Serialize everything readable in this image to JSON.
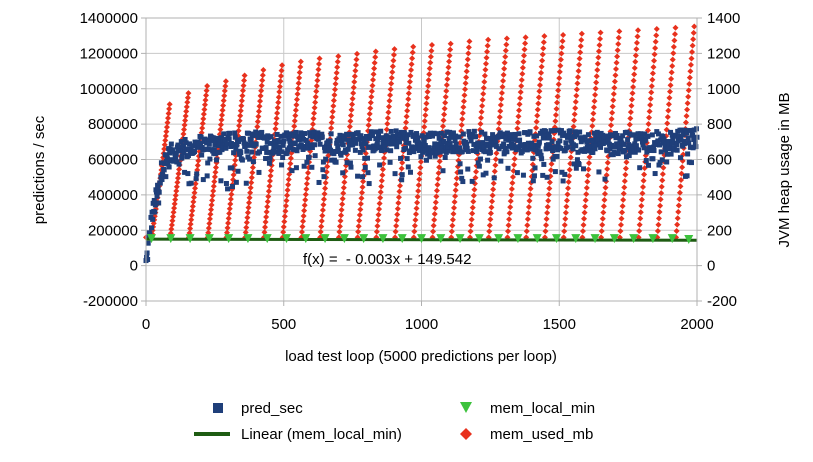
{
  "chart_data": {
    "type": "scatter",
    "title": "",
    "xlabel": "load test loop (5000 predictions per loop)",
    "ylabel": "predictions / sec",
    "y2label": "JVM heap usage in MB",
    "xlim": [
      0,
      2000
    ],
    "ylim": [
      -200000,
      1400000
    ],
    "y2lim": [
      -200,
      1400
    ],
    "x_ticks": [
      0,
      500,
      1000,
      1500,
      2000
    ],
    "y_ticks": [
      -200000,
      0,
      200000,
      400000,
      600000,
      800000,
      1000000,
      1200000,
      1400000
    ],
    "y2_ticks": [
      -200,
      0,
      200,
      400,
      600,
      800,
      1000,
      1200,
      1400
    ],
    "grid": true,
    "legend_position": "bottom",
    "trendline_label": "f(x) =  - 0.003x + 149.542",
    "series": [
      {
        "name": "pred_sec",
        "axis": "y",
        "color": "#1f3f7a",
        "marker": "square",
        "description_points": {
          "x": [
            0,
            5,
            10,
            15,
            20,
            30,
            40,
            50,
            60,
            80,
            100,
            150,
            200,
            300,
            400,
            500,
            600,
            700,
            800,
            900,
            1000,
            1100,
            1200,
            1300,
            1400,
            1500,
            1600,
            1700,
            1800,
            1900,
            2000
          ],
          "y": [
            10000,
            60000,
            130000,
            180000,
            260000,
            330000,
            400000,
            480000,
            560000,
            610000,
            640000,
            660000,
            680000,
            690000,
            700000,
            690000,
            700000,
            690000,
            700000,
            710000,
            690000,
            700000,
            700000,
            690000,
            700000,
            710000,
            700000,
            690000,
            700000,
            700000,
            720000
          ]
        },
        "typical_range": [
          550000,
          800000
        ]
      },
      {
        "name": "mem_used_mb",
        "axis": "y2",
        "color": "#e8311d",
        "marker": "diamond",
        "cycle_length_loops": 68,
        "cycle_floor_mb": 160,
        "cycle_peaks": {
          "x": [
            30,
            100,
            200,
            300,
            400,
            500,
            600,
            700,
            800,
            900,
            1000,
            1100,
            1200,
            1300,
            1400,
            1500,
            1600,
            1700,
            1800,
            1900,
            1970
          ],
          "y": [
            820,
            950,
            1020,
            1060,
            1110,
            1150,
            1180,
            1200,
            1220,
            1240,
            1260,
            1270,
            1290,
            1300,
            1310,
            1320,
            1330,
            1340,
            1350,
            1360,
            1370
          ]
        }
      },
      {
        "name": "mem_local_min",
        "axis": "y2",
        "color": "#3cc23c",
        "marker": "triangle-down",
        "x": [
          20,
          90,
          160,
          230,
          300,
          370,
          440,
          510,
          580,
          650,
          720,
          790,
          860,
          930,
          1000,
          1070,
          1140,
          1210,
          1280,
          1350,
          1420,
          1490,
          1560,
          1630,
          1700,
          1770,
          1840,
          1910,
          1970
        ],
        "y": [
          150,
          150,
          150,
          150,
          150,
          150,
          150,
          150,
          150,
          150,
          150,
          150,
          150,
          150,
          150,
          150,
          150,
          150,
          150,
          150,
          150,
          150,
          150,
          150,
          150,
          150,
          150,
          150,
          145
        ]
      },
      {
        "name": "Linear (mem_local_min)",
        "axis": "y2",
        "color": "#1e5c12",
        "line": true,
        "x": [
          0,
          2000
        ],
        "y": [
          149.542,
          143.542
        ]
      }
    ],
    "legend": [
      {
        "name": "pred_sec",
        "marker": "square",
        "color": "#1f3f7a"
      },
      {
        "name": "mem_local_min",
        "marker": "triangle-down",
        "color": "#3cc23c"
      },
      {
        "name": "Linear (mem_local_min)",
        "marker": "line",
        "color": "#1e5c12"
      },
      {
        "name": "mem_used_mb",
        "marker": "diamond",
        "color": "#e8311d"
      }
    ]
  }
}
